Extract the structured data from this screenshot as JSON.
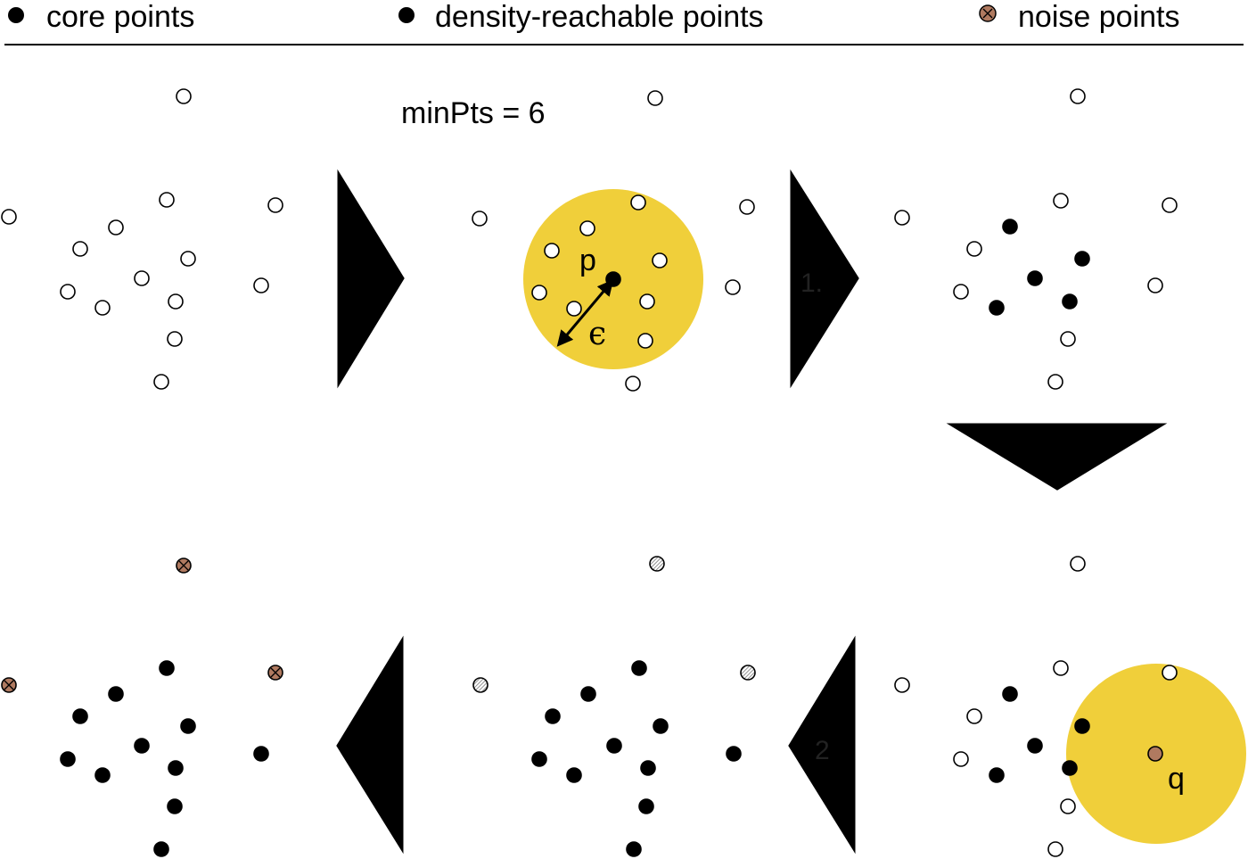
{
  "legend": {
    "core": "core points",
    "reachable": "density-reachable points",
    "noise": "noise points"
  },
  "param_label": "minPts = 6",
  "point_label_p": "p",
  "epsilon_symbol": "ϵ",
  "point_label_q": "q",
  "step1_label": "1.",
  "step2_label": "2",
  "colors": {
    "neighborhood": "#f0cf3a",
    "noise": "#b07a60",
    "reachable_hatch": "#9a9a9a",
    "point_fill": "#000000",
    "empty_fill": "#ffffff"
  }
}
